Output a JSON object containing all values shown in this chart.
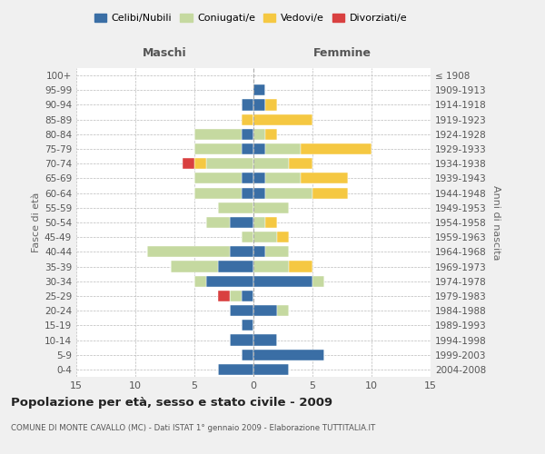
{
  "age_groups": [
    "0-4",
    "5-9",
    "10-14",
    "15-19",
    "20-24",
    "25-29",
    "30-34",
    "35-39",
    "40-44",
    "45-49",
    "50-54",
    "55-59",
    "60-64",
    "65-69",
    "70-74",
    "75-79",
    "80-84",
    "85-89",
    "90-94",
    "95-99",
    "100+"
  ],
  "birth_years": [
    "2004-2008",
    "1999-2003",
    "1994-1998",
    "1989-1993",
    "1984-1988",
    "1979-1983",
    "1974-1978",
    "1969-1973",
    "1964-1968",
    "1959-1963",
    "1954-1958",
    "1949-1953",
    "1944-1948",
    "1939-1943",
    "1934-1938",
    "1929-1933",
    "1924-1928",
    "1919-1923",
    "1914-1918",
    "1909-1913",
    "≤ 1908"
  ],
  "male": {
    "celibi": [
      3,
      1,
      2,
      1,
      2,
      1,
      4,
      3,
      2,
      0,
      2,
      0,
      1,
      1,
      0,
      1,
      1,
      0,
      1,
      0,
      0
    ],
    "coniugati": [
      0,
      0,
      0,
      0,
      0,
      1,
      1,
      4,
      7,
      1,
      2,
      3,
      4,
      4,
      4,
      4,
      4,
      0,
      0,
      0,
      0
    ],
    "vedovi": [
      0,
      0,
      0,
      0,
      0,
      0,
      0,
      0,
      0,
      0,
      0,
      0,
      0,
      0,
      1,
      0,
      0,
      1,
      0,
      0,
      0
    ],
    "divorziati": [
      0,
      0,
      0,
      0,
      0,
      1,
      0,
      0,
      0,
      0,
      0,
      0,
      0,
      0,
      1,
      0,
      0,
      0,
      0,
      0,
      0
    ]
  },
  "female": {
    "nubili": [
      3,
      6,
      2,
      0,
      2,
      0,
      5,
      0,
      1,
      0,
      0,
      0,
      1,
      1,
      0,
      1,
      0,
      0,
      1,
      1,
      0
    ],
    "coniugate": [
      0,
      0,
      0,
      0,
      1,
      0,
      1,
      3,
      2,
      2,
      1,
      3,
      4,
      3,
      3,
      3,
      1,
      0,
      0,
      0,
      0
    ],
    "vedove": [
      0,
      0,
      0,
      0,
      0,
      0,
      0,
      2,
      0,
      1,
      1,
      0,
      3,
      4,
      2,
      6,
      1,
      5,
      1,
      0,
      0
    ],
    "divorziate": [
      0,
      0,
      0,
      0,
      0,
      0,
      0,
      0,
      0,
      0,
      0,
      0,
      0,
      0,
      0,
      0,
      0,
      0,
      0,
      0,
      0
    ]
  },
  "colors": {
    "celibi": "#3a6ea5",
    "coniugati": "#c5d9a0",
    "vedovi": "#f5c842",
    "divorziati": "#d94040"
  },
  "legend_labels": [
    "Celibi/Nubili",
    "Coniugati/e",
    "Vedovi/e",
    "Divorziati/e"
  ],
  "title": "Popolazione per età, sesso e stato civile - 2009",
  "subtitle": "COMUNE DI MONTE CAVALLO (MC) - Dati ISTAT 1° gennaio 2009 - Elaborazione TUTTITALIA.IT",
  "xlabel_left": "Maschi",
  "xlabel_right": "Femmine",
  "ylabel_left": "Fasce di età",
  "ylabel_right": "Anni di nascita",
  "xlim": 15,
  "bg_color": "#f0f0f0",
  "plot_bg_color": "#ffffff",
  "grid_color": "#bbbbbb"
}
